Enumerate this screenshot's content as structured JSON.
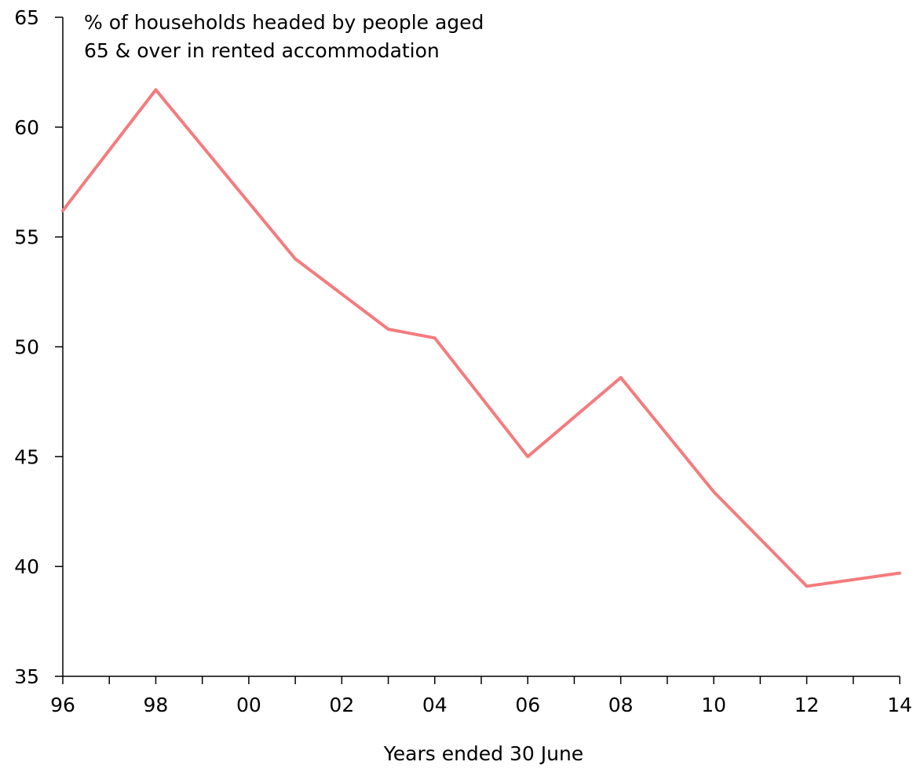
{
  "chart_data": {
    "type": "line",
    "annotation": [
      "% of households headed by people aged",
      "65 & over in rented accommodation"
    ],
    "xlabel": "Years ended 30 June",
    "ylabel": "",
    "x_tick_labels": [
      "96",
      "98",
      "00",
      "02",
      "04",
      "06",
      "08",
      "10",
      "12",
      "14"
    ],
    "x_tick_years": [
      1996,
      1998,
      2000,
      2002,
      2004,
      2006,
      2008,
      2010,
      2012,
      2014
    ],
    "xlim": [
      1996,
      2014
    ],
    "ylim": [
      35,
      65
    ],
    "y_ticks": [
      35,
      40,
      45,
      50,
      55,
      60,
      65
    ],
    "grid": false,
    "series": [
      {
        "color": "#f47b7e",
        "x": [
          1996,
          1998,
          2001,
          2003,
          2004,
          2006,
          2008,
          2010,
          2012,
          2014
        ],
        "values": [
          56.2,
          61.7,
          54.0,
          50.8,
          50.4,
          45.0,
          48.6,
          43.4,
          39.1,
          39.7
        ]
      }
    ]
  }
}
